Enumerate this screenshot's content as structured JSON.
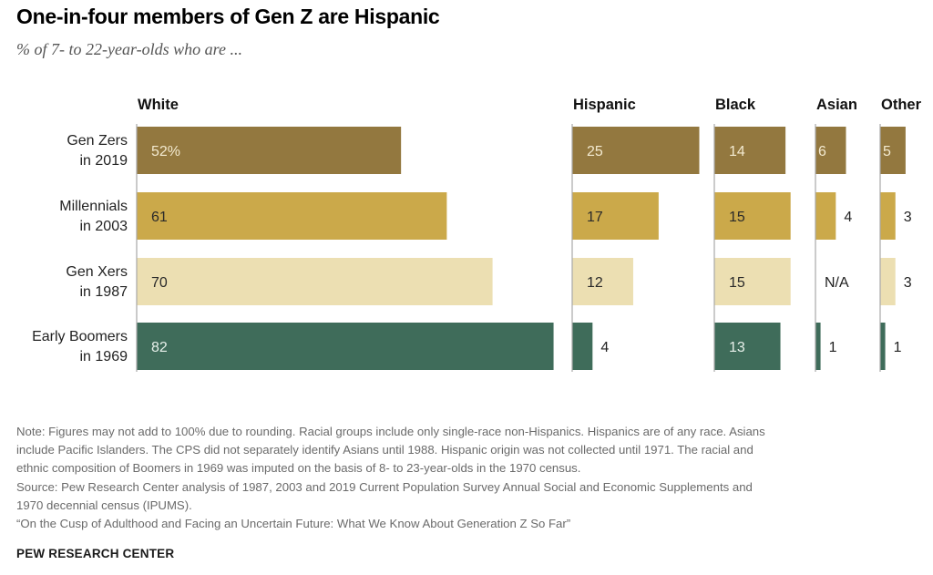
{
  "chart_data": {
    "type": "bar",
    "title": "One-in-four members of Gen Z are Hispanic",
    "subtitle": "% of 7- to 22-year-olds who are ...",
    "categories": [
      "Gen Zers|in 2019",
      "Millennials|in 2003",
      "Gen Xers|in 1987",
      "Early Boomers|in 1969"
    ],
    "colors": [
      "#93783f",
      "#cba94a",
      "#ecdfb2",
      "#3f6c5a"
    ],
    "label_colors": [
      "#f3ead0",
      "#2a2a2a",
      "#2a2a2a",
      "#e7f0ea"
    ],
    "series": [
      {
        "name": "White",
        "values": [
          52,
          61,
          70,
          82
        ],
        "labels": [
          "52%",
          "61",
          "70",
          "82"
        ]
      },
      {
        "name": "Hispanic",
        "values": [
          25,
          17,
          12,
          4
        ],
        "labels": [
          "25",
          "17",
          "12",
          "4"
        ]
      },
      {
        "name": "Black",
        "values": [
          14,
          15,
          15,
          13
        ],
        "labels": [
          "14",
          "15",
          "15",
          "13"
        ]
      },
      {
        "name": "Asian",
        "values": [
          6,
          4,
          null,
          1
        ],
        "labels": [
          "6",
          "4",
          "N/A",
          "1"
        ]
      },
      {
        "name": "Other",
        "values": [
          5,
          3,
          3,
          1
        ],
        "labels": [
          "5",
          "3",
          "3",
          "1"
        ]
      }
    ]
  },
  "notes": [
    "Note: Figures may not add to 100% due to rounding. Racial groups include only single-race non-Hispanics. Hispanics are of any race. Asians",
    "include Pacific Islanders. The CPS did not separately identify Asians until 1988. Hispanic origin was not collected until 1971. The racial and",
    "ethnic composition of Boomers in 1969 was imputed on the basis of 8- to 23-year-olds in the 1970 census.",
    "Source: Pew Research Center analysis of 1987, 2003 and 2019 Current Population Survey Annual Social and Economic Supplements and",
    "1970 decennial census (IPUMS).",
    "“On the Cusp of Adulthood and Facing an Uncertain Future: What We Know About Generation Z So Far”"
  ],
  "source_brand": "PEW RESEARCH CENTER"
}
